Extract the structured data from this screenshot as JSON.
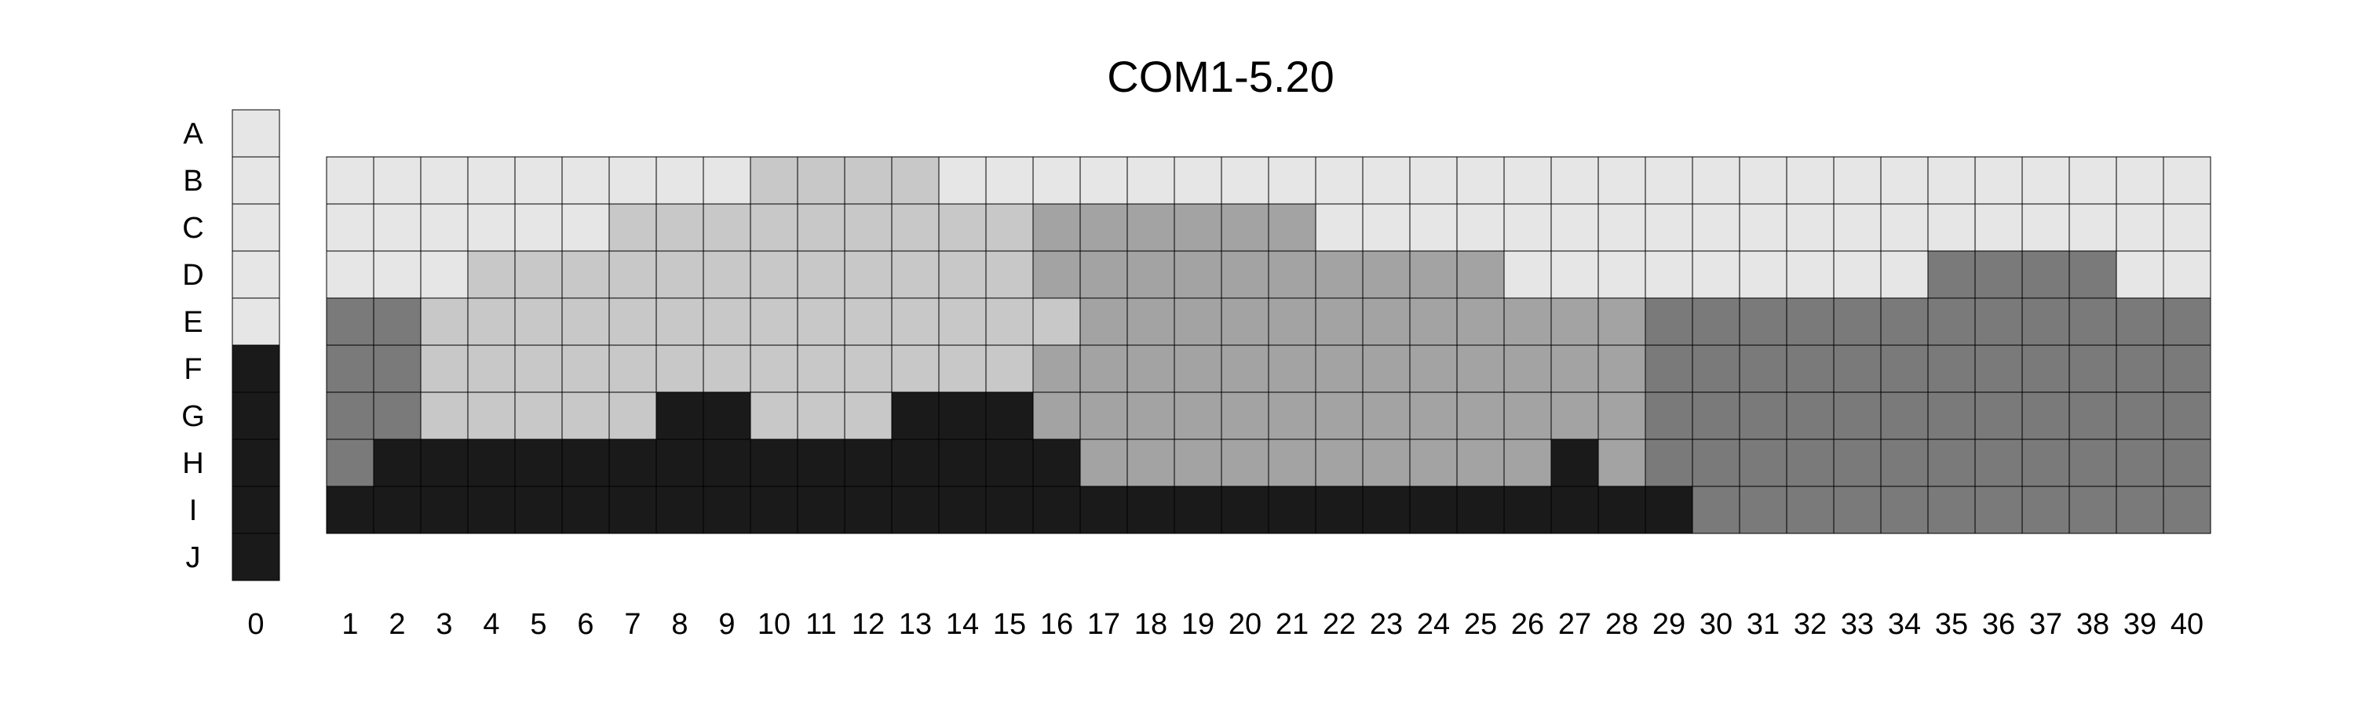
{
  "chart_data": {
    "type": "heatmap",
    "title": "COM1-5.20",
    "row_labels": [
      "A",
      "B",
      "C",
      "D",
      "E",
      "F",
      "G",
      "H",
      "I",
      "J"
    ],
    "column_labels": [
      "0",
      "1",
      "2",
      "3",
      "4",
      "5",
      "6",
      "7",
      "8",
      "9",
      "10",
      "11",
      "12",
      "13",
      "14",
      "15",
      "16",
      "17",
      "18",
      "19",
      "20",
      "21",
      "22",
      "23",
      "24",
      "25",
      "26",
      "27",
      "28",
      "29",
      "30",
      "31",
      "32",
      "33",
      "34",
      "35",
      "36",
      "37",
      "38",
      "39",
      "40"
    ],
    "levels": [
      {
        "level": 1,
        "color": "#e6e6e6"
      },
      {
        "level": 2,
        "color": "#c8c8c8"
      },
      {
        "level": 3,
        "color": "#a3a3a3"
      },
      {
        "level": 4,
        "color": "#7a7a7a"
      },
      {
        "level": 5,
        "color": "#1a1a1a"
      }
    ],
    "column_0": {
      "rows": [
        "A",
        "B",
        "C",
        "D",
        "E",
        "F",
        "G",
        "H",
        "I",
        "J"
      ],
      "values": [
        1,
        1,
        1,
        1,
        1,
        5,
        5,
        5,
        5,
        5
      ]
    },
    "grid": {
      "rows": [
        "B",
        "C",
        "D",
        "E",
        "F",
        "G",
        "H",
        "I"
      ],
      "columns": [
        "1",
        "2",
        "3",
        "4",
        "5",
        "6",
        "7",
        "8",
        "9",
        "10",
        "11",
        "12",
        "13",
        "14",
        "15",
        "16",
        "17",
        "18",
        "19",
        "20",
        "21",
        "22",
        "23",
        "24",
        "25",
        "26",
        "27",
        "28",
        "29",
        "30",
        "31",
        "32",
        "33",
        "34",
        "35",
        "36",
        "37",
        "38",
        "39",
        "40"
      ],
      "values": [
        [
          1,
          1,
          1,
          1,
          1,
          1,
          1,
          1,
          1,
          2,
          2,
          2,
          2,
          1,
          1,
          1,
          1,
          1,
          1,
          1,
          1,
          1,
          1,
          1,
          1,
          1,
          1,
          1,
          1,
          1,
          1,
          1,
          1,
          1,
          1,
          1,
          1,
          1,
          1,
          1
        ],
        [
          1,
          1,
          1,
          1,
          1,
          1,
          2,
          2,
          2,
          2,
          2,
          2,
          2,
          2,
          2,
          3,
          3,
          3,
          3,
          3,
          3,
          1,
          1,
          1,
          1,
          1,
          1,
          1,
          1,
          1,
          1,
          1,
          1,
          1,
          1,
          1,
          1,
          1,
          1,
          1
        ],
        [
          1,
          1,
          1,
          2,
          2,
          2,
          2,
          2,
          2,
          2,
          2,
          2,
          2,
          2,
          2,
          3,
          3,
          3,
          3,
          3,
          3,
          3,
          3,
          3,
          3,
          1,
          1,
          1,
          1,
          1,
          1,
          1,
          1,
          1,
          4,
          4,
          4,
          4,
          1,
          1
        ],
        [
          4,
          4,
          2,
          2,
          2,
          2,
          2,
          2,
          2,
          2,
          2,
          2,
          2,
          2,
          2,
          2,
          3,
          3,
          3,
          3,
          3,
          3,
          3,
          3,
          3,
          3,
          3,
          3,
          4,
          4,
          4,
          4,
          4,
          4,
          4,
          4,
          4,
          4,
          4,
          4
        ],
        [
          4,
          4,
          2,
          2,
          2,
          2,
          2,
          2,
          2,
          2,
          2,
          2,
          2,
          2,
          2,
          3,
          3,
          3,
          3,
          3,
          3,
          3,
          3,
          3,
          3,
          3,
          3,
          3,
          4,
          4,
          4,
          4,
          4,
          4,
          4,
          4,
          4,
          4,
          4,
          4
        ],
        [
          4,
          4,
          2,
          2,
          2,
          2,
          2,
          5,
          5,
          2,
          2,
          2,
          5,
          5,
          5,
          3,
          3,
          3,
          3,
          3,
          3,
          3,
          3,
          3,
          3,
          3,
          3,
          3,
          4,
          4,
          4,
          4,
          4,
          4,
          4,
          4,
          4,
          4,
          4,
          4
        ],
        [
          4,
          5,
          5,
          5,
          5,
          5,
          5,
          5,
          5,
          5,
          5,
          5,
          5,
          5,
          5,
          5,
          3,
          3,
          3,
          3,
          3,
          3,
          3,
          3,
          3,
          3,
          5,
          3,
          4,
          4,
          4,
          4,
          4,
          4,
          4,
          4,
          4,
          4,
          4,
          4
        ],
        [
          5,
          5,
          5,
          5,
          5,
          5,
          5,
          5,
          5,
          5,
          5,
          5,
          5,
          5,
          5,
          5,
          5,
          5,
          5,
          5,
          5,
          5,
          5,
          5,
          5,
          5,
          5,
          5,
          5,
          4,
          4,
          4,
          4,
          4,
          4,
          4,
          4,
          4,
          4,
          4
        ]
      ]
    },
    "legend": "none",
    "grid_lines": true
  }
}
